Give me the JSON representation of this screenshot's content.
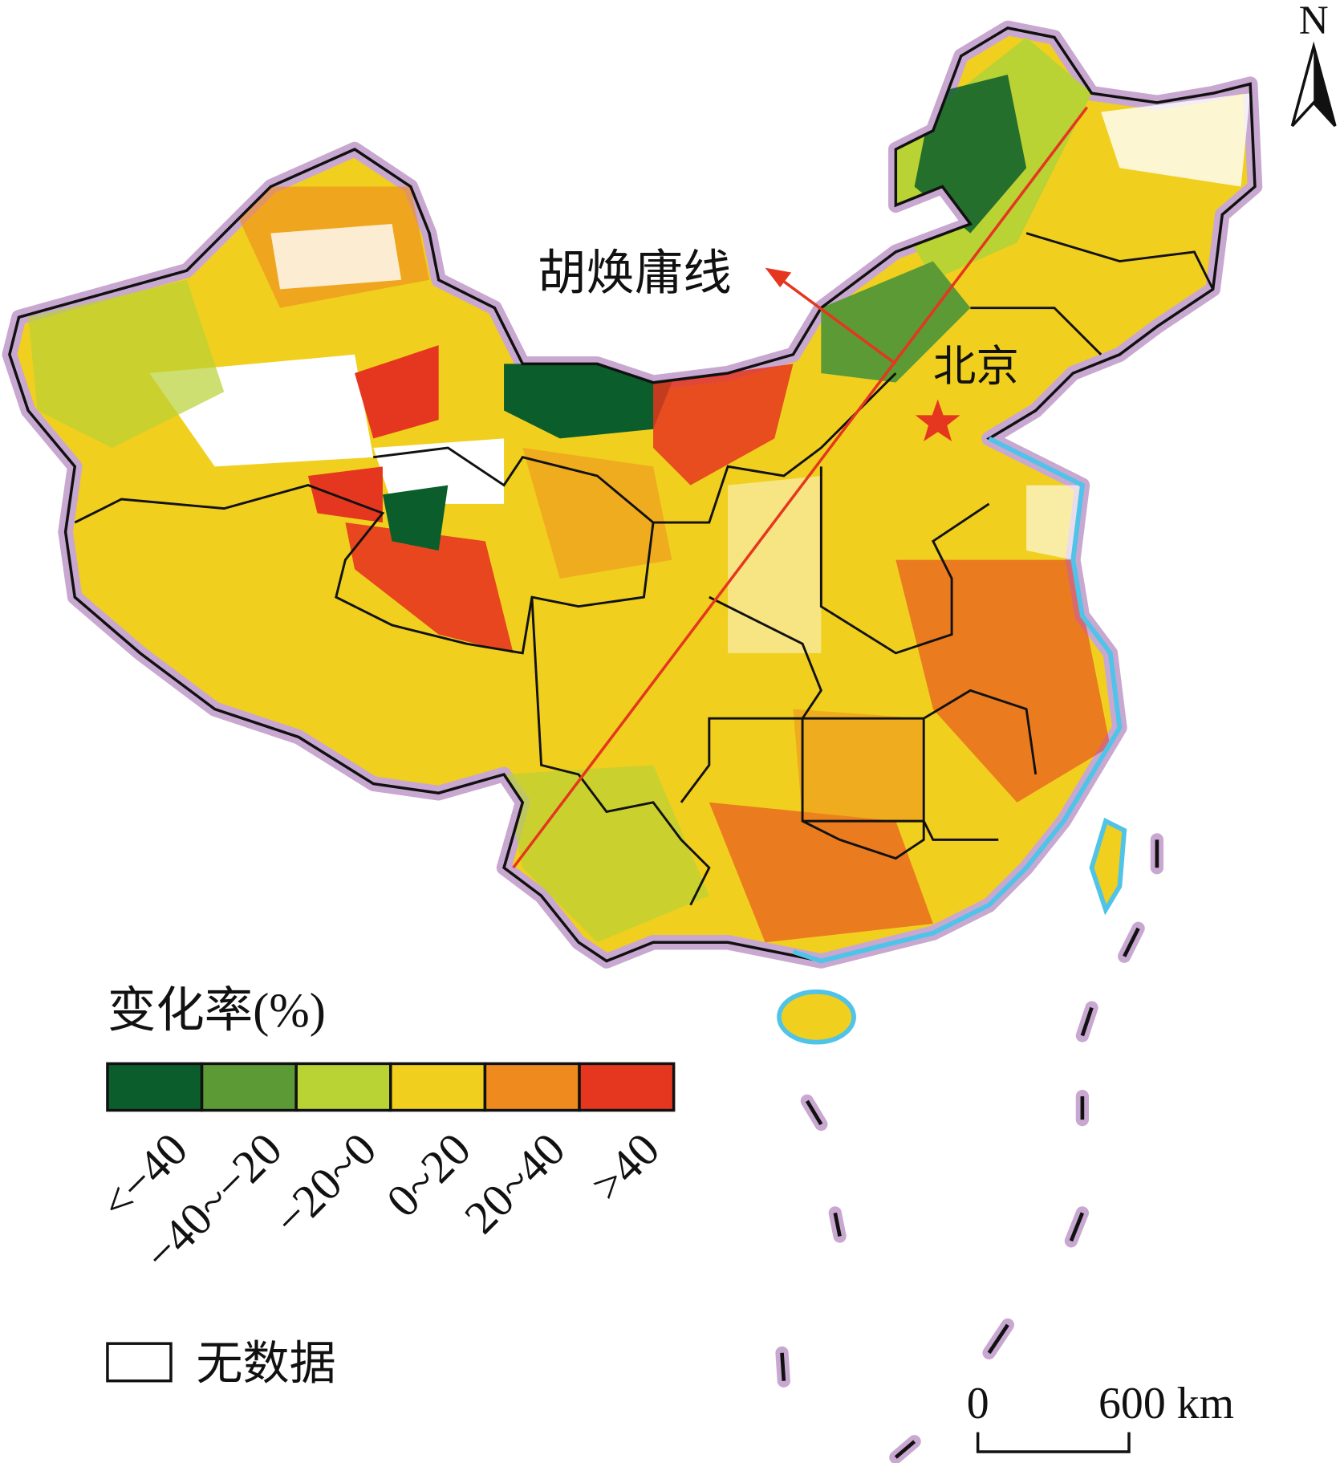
{
  "north": "N",
  "hu_line_label": "胡焕庸线",
  "capital_label": "北京",
  "legend": {
    "title": "变化率(%)",
    "classes": [
      {
        "label": "<−40",
        "color": "#0b5e2c"
      },
      {
        "label": "−40~−20",
        "color": "#5b9a35"
      },
      {
        "label": "−20~0",
        "color": "#b9d234"
      },
      {
        "label": "0~20",
        "color": "#f0cf1e"
      },
      {
        "label": "20~40",
        "color": "#ee8a1e"
      },
      {
        "label": ">40",
        "color": "#e5361f"
      }
    ],
    "no_data": "无数据"
  },
  "scale_bar": {
    "start": "0",
    "end": "600 km"
  }
}
